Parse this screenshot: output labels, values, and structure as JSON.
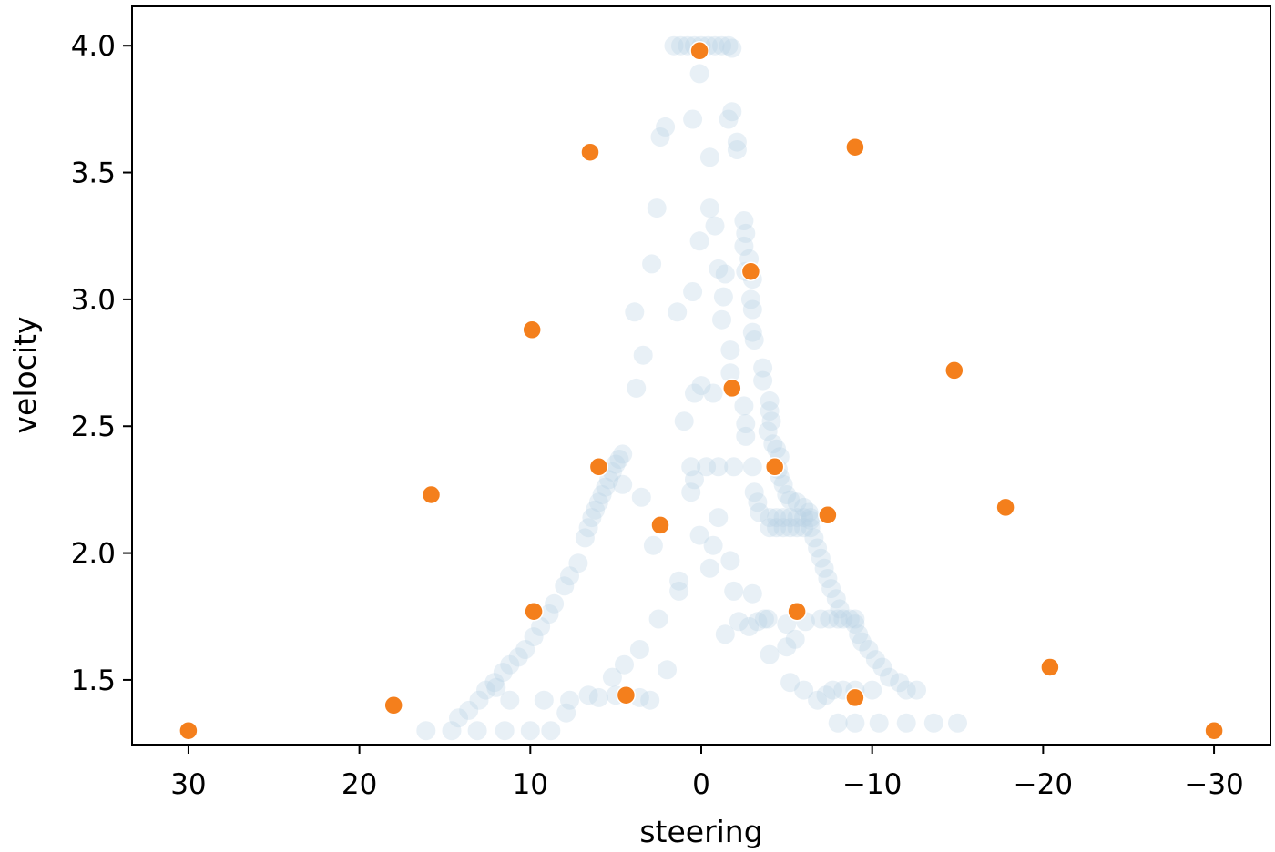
{
  "chart_data": {
    "type": "scatter",
    "title": "",
    "xlabel": "steering",
    "ylabel": "velocity",
    "xlim": [
      33.3,
      -33.3
    ],
    "ylim": [
      1.245,
      4.155
    ],
    "x_inverted": true,
    "grid": false,
    "xticks": [
      30,
      20,
      10,
      0,
      -10,
      -20,
      -30
    ],
    "xtick_labels": [
      "30",
      "20",
      "10",
      "0",
      "−10",
      "−20",
      "−30"
    ],
    "yticks": [
      1.5,
      2.0,
      2.5,
      3.0,
      3.5,
      4.0
    ],
    "ytick_labels": [
      "1.5",
      "2.0",
      "2.5",
      "3.0",
      "3.5",
      "4.0"
    ],
    "colors": {
      "background_points": "#b9d0e3",
      "highlight_points": "#f47f1c",
      "highlight_edge": "#ffffff",
      "axes": "#000000"
    },
    "series": [
      {
        "points": [
          [
            0.8,
            4.0
          ],
          [
            0.4,
            4.0
          ],
          [
            0.0,
            4.0
          ],
          [
            -0.4,
            4.0
          ],
          [
            -0.8,
            4.0
          ],
          [
            -1.2,
            4.0
          ],
          [
            -1.6,
            4.0
          ],
          [
            -1.8,
            3.99
          ],
          [
            1.2,
            4.0
          ],
          [
            1.6,
            4.0
          ],
          [
            0.1,
            3.89
          ],
          [
            -1.8,
            3.74
          ],
          [
            -1.6,
            3.71
          ],
          [
            0.5,
            3.71
          ],
          [
            2.1,
            3.68
          ],
          [
            2.4,
            3.64
          ],
          [
            -2.1,
            3.62
          ],
          [
            -2.1,
            3.59
          ],
          [
            -0.5,
            3.56
          ],
          [
            2.6,
            3.36
          ],
          [
            -0.5,
            3.36
          ],
          [
            -2.5,
            3.31
          ],
          [
            -0.8,
            3.29
          ],
          [
            -2.6,
            3.26
          ],
          [
            0.1,
            3.23
          ],
          [
            -2.5,
            3.21
          ],
          [
            -2.8,
            3.16
          ],
          [
            -2.6,
            3.11
          ],
          [
            2.9,
            3.14
          ],
          [
            -1.0,
            3.12
          ],
          [
            -1.4,
            3.1
          ],
          [
            -3.0,
            3.08
          ],
          [
            0.5,
            3.03
          ],
          [
            -1.3,
            3.01
          ],
          [
            -2.9,
            3.0
          ],
          [
            -3.0,
            2.96
          ],
          [
            3.9,
            2.95
          ],
          [
            1.4,
            2.95
          ],
          [
            -1.2,
            2.92
          ],
          [
            -3.0,
            2.87
          ],
          [
            -3.1,
            2.84
          ],
          [
            3.4,
            2.78
          ],
          [
            -1.7,
            2.8
          ],
          [
            -1.7,
            2.71
          ],
          [
            -3.6,
            2.73
          ],
          [
            -3.6,
            2.68
          ],
          [
            3.8,
            2.65
          ],
          [
            0.0,
            2.66
          ],
          [
            -0.7,
            2.63
          ],
          [
            0.4,
            2.63
          ],
          [
            -2.5,
            2.58
          ],
          [
            -4.0,
            2.6
          ],
          [
            -4.0,
            2.56
          ],
          [
            1.0,
            2.52
          ],
          [
            -2.6,
            2.51
          ],
          [
            -4.1,
            2.52
          ],
          [
            -3.9,
            2.48
          ],
          [
            -2.6,
            2.46
          ],
          [
            -4.2,
            2.43
          ],
          [
            -4.4,
            2.41
          ],
          [
            -4.6,
            2.38
          ],
          [
            4.6,
            2.39
          ],
          [
            4.8,
            2.37
          ],
          [
            5.0,
            2.35
          ],
          [
            5.2,
            2.32
          ],
          [
            5.4,
            2.29
          ],
          [
            5.6,
            2.26
          ],
          [
            5.8,
            2.23
          ],
          [
            6.0,
            2.2
          ],
          [
            6.2,
            2.17
          ],
          [
            6.4,
            2.14
          ],
          [
            6.6,
            2.1
          ],
          [
            6.8,
            2.06
          ],
          [
            0.6,
            2.34
          ],
          [
            -0.3,
            2.34
          ],
          [
            -1.0,
            2.34
          ],
          [
            -1.9,
            2.34
          ],
          [
            -3.0,
            2.34
          ],
          [
            -4.5,
            2.33
          ],
          [
            -4.6,
            2.3
          ],
          [
            -4.8,
            2.27
          ],
          [
            -3.1,
            2.24
          ],
          [
            -3.3,
            2.2
          ],
          [
            -3.4,
            2.16
          ],
          [
            -5.0,
            2.23
          ],
          [
            -5.2,
            2.21
          ],
          [
            -5.6,
            2.2
          ],
          [
            -6.0,
            2.18
          ],
          [
            -6.3,
            2.16
          ],
          [
            -6.4,
            2.13
          ],
          [
            -4.0,
            2.14
          ],
          [
            -4.4,
            2.14
          ],
          [
            -4.8,
            2.14
          ],
          [
            -5.2,
            2.14
          ],
          [
            -5.6,
            2.14
          ],
          [
            -6.0,
            2.14
          ],
          [
            -6.4,
            2.14
          ],
          [
            -4.0,
            2.1
          ],
          [
            -4.4,
            2.1
          ],
          [
            -4.8,
            2.1
          ],
          [
            -5.2,
            2.1
          ],
          [
            -5.6,
            2.1
          ],
          [
            -6.0,
            2.1
          ],
          [
            -6.4,
            2.1
          ],
          [
            0.6,
            2.24
          ],
          [
            0.4,
            2.29
          ],
          [
            4.6,
            2.27
          ],
          [
            3.5,
            2.22
          ],
          [
            -1.0,
            2.14
          ],
          [
            0.1,
            2.07
          ],
          [
            -0.7,
            2.03
          ],
          [
            2.8,
            2.03
          ],
          [
            -6.6,
            2.06
          ],
          [
            -6.8,
            2.02
          ],
          [
            -7.0,
            1.98
          ],
          [
            -7.2,
            1.94
          ],
          [
            -7.4,
            1.9
          ],
          [
            -7.6,
            1.86
          ],
          [
            -7.9,
            1.82
          ],
          [
            -8.1,
            1.78
          ],
          [
            -8.3,
            1.74
          ],
          [
            -8.7,
            1.74
          ],
          [
            -9.0,
            1.72
          ],
          [
            -9.2,
            1.68
          ],
          [
            -9.4,
            1.65
          ],
          [
            -9.8,
            1.62
          ],
          [
            -10.2,
            1.58
          ],
          [
            -10.6,
            1.55
          ],
          [
            -11.0,
            1.51
          ],
          [
            -11.6,
            1.49
          ],
          [
            -12.0,
            1.46
          ],
          [
            -12.6,
            1.46
          ],
          [
            7.2,
            1.96
          ],
          [
            7.7,
            1.91
          ],
          [
            8.0,
            1.87
          ],
          [
            8.6,
            1.8
          ],
          [
            8.9,
            1.76
          ],
          [
            9.4,
            1.71
          ],
          [
            9.8,
            1.67
          ],
          [
            10.3,
            1.62
          ],
          [
            10.7,
            1.59
          ],
          [
            11.2,
            1.56
          ],
          [
            11.6,
            1.53
          ],
          [
            12.1,
            1.49
          ],
          [
            12.6,
            1.46
          ],
          [
            13.0,
            1.42
          ],
          [
            13.6,
            1.38
          ],
          [
            14.2,
            1.35
          ],
          [
            1.3,
            1.89
          ],
          [
            -0.5,
            1.94
          ],
          [
            -1.7,
            1.97
          ],
          [
            -1.9,
            1.85
          ],
          [
            1.3,
            1.85
          ],
          [
            -3.0,
            1.84
          ],
          [
            2.5,
            1.74
          ],
          [
            -2.2,
            1.73
          ],
          [
            -1.4,
            1.68
          ],
          [
            -2.8,
            1.71
          ],
          [
            -3.3,
            1.73
          ],
          [
            -3.7,
            1.74
          ],
          [
            -3.9,
            1.74
          ],
          [
            -5.0,
            1.72
          ],
          [
            -6.1,
            1.73
          ],
          [
            -7.0,
            1.74
          ],
          [
            -7.5,
            1.74
          ],
          [
            -8.0,
            1.74
          ],
          [
            -9.0,
            1.74
          ],
          [
            -4.0,
            1.6
          ],
          [
            -5.0,
            1.63
          ],
          [
            -5.5,
            1.66
          ],
          [
            3.6,
            1.62
          ],
          [
            4.5,
            1.56
          ],
          [
            2.0,
            1.54
          ],
          [
            5.2,
            1.51
          ],
          [
            -5.2,
            1.49
          ],
          [
            -6.0,
            1.46
          ],
          [
            -6.8,
            1.42
          ],
          [
            -7.3,
            1.44
          ],
          [
            -7.7,
            1.46
          ],
          [
            -8.3,
            1.46
          ],
          [
            -9.0,
            1.46
          ],
          [
            -10.0,
            1.46
          ],
          [
            5.0,
            1.44
          ],
          [
            3.6,
            1.43
          ],
          [
            3.0,
            1.42
          ],
          [
            6.0,
            1.43
          ],
          [
            6.6,
            1.44
          ],
          [
            7.7,
            1.42
          ],
          [
            7.9,
            1.37
          ],
          [
            9.2,
            1.42
          ],
          [
            11.2,
            1.42
          ],
          [
            12.0,
            1.47
          ],
          [
            -8.0,
            1.33
          ],
          [
            -9.0,
            1.33
          ],
          [
            -10.4,
            1.33
          ],
          [
            -12.0,
            1.33
          ],
          [
            -13.6,
            1.33
          ],
          [
            -15.0,
            1.33
          ],
          [
            16.1,
            1.3
          ],
          [
            14.6,
            1.3
          ],
          [
            13.1,
            1.3
          ],
          [
            11.5,
            1.3
          ],
          [
            10.0,
            1.3
          ],
          [
            8.8,
            1.3
          ]
        ]
      },
      {
        "points": [
          [
            0.1,
            3.98
          ],
          [
            6.5,
            3.58
          ],
          [
            -9.0,
            3.6
          ],
          [
            -2.9,
            3.11
          ],
          [
            9.9,
            2.88
          ],
          [
            -14.8,
            2.72
          ],
          [
            -1.8,
            2.65
          ],
          [
            6.0,
            2.34
          ],
          [
            -4.3,
            2.34
          ],
          [
            15.8,
            2.23
          ],
          [
            -17.8,
            2.18
          ],
          [
            2.4,
            2.11
          ],
          [
            -7.4,
            2.15
          ],
          [
            9.8,
            1.77
          ],
          [
            -5.6,
            1.77
          ],
          [
            -20.4,
            1.55
          ],
          [
            18.0,
            1.4
          ],
          [
            4.4,
            1.44
          ],
          [
            -9.0,
            1.43
          ],
          [
            30.0,
            1.3
          ],
          [
            -30.0,
            1.3
          ]
        ]
      }
    ]
  }
}
